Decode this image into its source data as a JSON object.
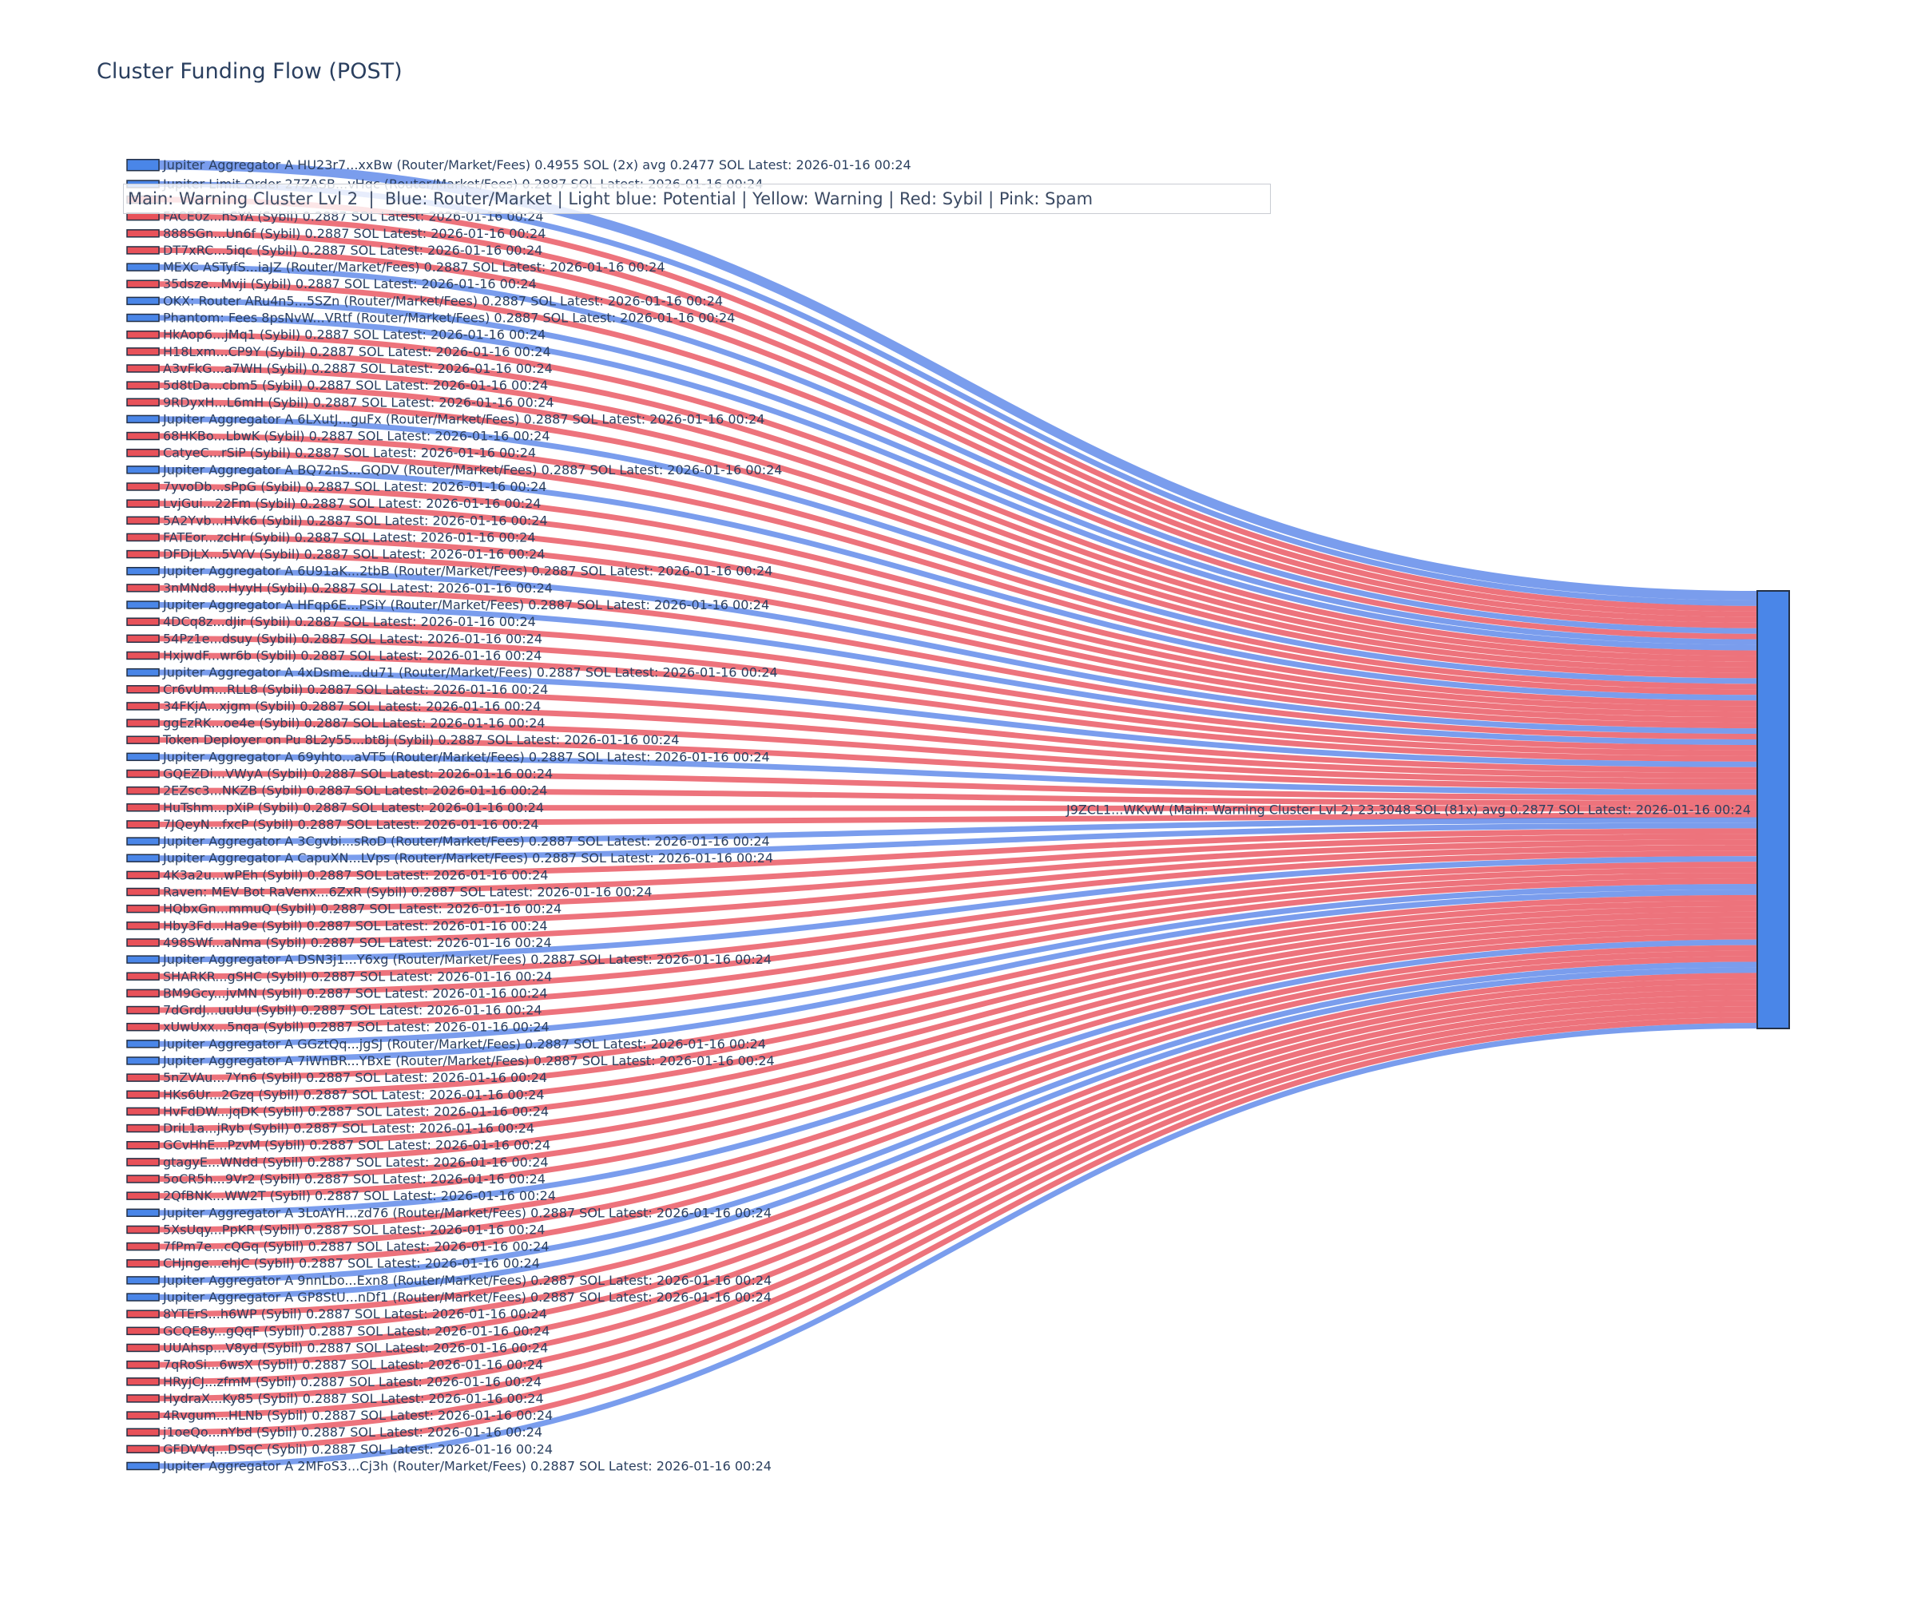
{
  "title": "Cluster Funding Flow (POST)",
  "legend": {
    "text": "Main: Warning Cluster Lvl 2  |  Blue: Router/Market | Light blue: Potential | Yellow: Warning | Red: Sybil | Pink: Spam"
  },
  "colors": {
    "router_node": "#4a86e8",
    "sybil_node": "#e8525a",
    "node_border": "#233046",
    "router_link": "rgba(65,115,230,0.70)",
    "sybil_link": "rgba(229,55,68,0.70)",
    "target_node": "#4a86e8",
    "text": "#2a3f5f",
    "background": "#ffffff"
  },
  "chart_data": {
    "type": "sankey",
    "title": "Cluster Funding Flow (POST)",
    "legend_position": "top-left",
    "target": {
      "label": "J9ZCL1...WKvW (Main: Warning Cluster Lvl 2) 23.3048 SOL (81x) avg 0.2877 SOL Latest: 2026-01-16 00:24",
      "total_sol": 23.3048,
      "tx_count": "81x",
      "avg_sol": 0.2877,
      "latest": "2026-01-16 00:24"
    },
    "sources": [
      {
        "label": "Jupiter Aggregator A HU23r7...xxBw (Router/Market/Fees) 0.4955 SOL (2x) avg 0.2477 SOL Latest: 2026-01-16 00:24",
        "category": "router",
        "value_sol": 0.4955
      },
      {
        "label": "Jupiter Limit Order 27ZASB...vHqc (Router/Market/Fees) 0.2887 SOL Latest: 2026-01-16 00:24",
        "category": "router",
        "value_sol": 0.2887
      },
      {
        "label": "",
        "category": "sybil",
        "value_sol": 0.2887,
        "hidden_behind_legend": true
      },
      {
        "label": "FACE0z...hSYA (Sybil) 0.2887 SOL Latest: 2026-01-16 00:24",
        "category": "sybil",
        "value_sol": 0.2887
      },
      {
        "label": "888SGn...Un6f (Sybil) 0.2887 SOL Latest: 2026-01-16 00:24",
        "category": "sybil",
        "value_sol": 0.2887
      },
      {
        "label": "DT7xRC...5iqc (Sybil) 0.2887 SOL Latest: 2026-01-16 00:24",
        "category": "sybil",
        "value_sol": 0.2887
      },
      {
        "label": "MEXC ASTyfS...iaJZ (Router/Market/Fees) 0.2887 SOL Latest: 2026-01-16 00:24",
        "category": "router",
        "value_sol": 0.2887
      },
      {
        "label": "35dsze...Mvji (Sybil) 0.2887 SOL Latest: 2026-01-16 00:24",
        "category": "sybil",
        "value_sol": 0.2887
      },
      {
        "label": "OKX: Router ARu4n5...5SZn (Router/Market/Fees) 0.2887 SOL Latest: 2026-01-16 00:24",
        "category": "router",
        "value_sol": 0.2887
      },
      {
        "label": "Phantom: Fees 8psNvW...VRtf (Router/Market/Fees) 0.2887 SOL Latest: 2026-01-16 00:24",
        "category": "router",
        "value_sol": 0.2887
      },
      {
        "label": "HkAop6...jMq1 (Sybil) 0.2887 SOL Latest: 2026-01-16 00:24",
        "category": "sybil",
        "value_sol": 0.2887
      },
      {
        "label": "H18Lxm...CP9Y (Sybil) 0.2887 SOL Latest: 2026-01-16 00:24",
        "category": "sybil",
        "value_sol": 0.2887
      },
      {
        "label": "A3vFkG...a7WH (Sybil) 0.2887 SOL Latest: 2026-01-16 00:24",
        "category": "sybil",
        "value_sol": 0.2887
      },
      {
        "label": "5d8tDa...cbm5 (Sybil) 0.2887 SOL Latest: 2026-01-16 00:24",
        "category": "sybil",
        "value_sol": 0.2887
      },
      {
        "label": "9RDyxH...L6mH (Sybil) 0.2887 SOL Latest: 2026-01-16 00:24",
        "category": "sybil",
        "value_sol": 0.2887
      },
      {
        "label": "Jupiter Aggregator A 6LXutJ...guFx (Router/Market/Fees) 0.2887 SOL Latest: 2026-01-16 00:24",
        "category": "router",
        "value_sol": 0.2887
      },
      {
        "label": "68HKBo...LbwK (Sybil) 0.2887 SOL Latest: 2026-01-16 00:24",
        "category": "sybil",
        "value_sol": 0.2887
      },
      {
        "label": "CatyeC...rSiP (Sybil) 0.2887 SOL Latest: 2026-01-16 00:24",
        "category": "sybil",
        "value_sol": 0.2887
      },
      {
        "label": "Jupiter Aggregator A BQ72nS...GQDV (Router/Market/Fees) 0.2887 SOL Latest: 2026-01-16 00:24",
        "category": "router",
        "value_sol": 0.2887
      },
      {
        "label": "7yvoDb...sPpG (Sybil) 0.2887 SOL Latest: 2026-01-16 00:24",
        "category": "sybil",
        "value_sol": 0.2887
      },
      {
        "label": "LvjGui...22Fm (Sybil) 0.2887 SOL Latest: 2026-01-16 00:24",
        "category": "sybil",
        "value_sol": 0.2887
      },
      {
        "label": "5A2Yvb...HVk6 (Sybil) 0.2887 SOL Latest: 2026-01-16 00:24",
        "category": "sybil",
        "value_sol": 0.2887
      },
      {
        "label": "FATEor...zcHr (Sybil) 0.2887 SOL Latest: 2026-01-16 00:24",
        "category": "sybil",
        "value_sol": 0.2887
      },
      {
        "label": "DFDjLX...5VYV (Sybil) 0.2887 SOL Latest: 2026-01-16 00:24",
        "category": "sybil",
        "value_sol": 0.2887
      },
      {
        "label": "Jupiter Aggregator A 6U91aK...2tbB (Router/Market/Fees) 0.2887 SOL Latest: 2026-01-16 00:24",
        "category": "router",
        "value_sol": 0.2887
      },
      {
        "label": "3nMNd8...HyyH (Sybil) 0.2887 SOL Latest: 2026-01-16 00:24",
        "category": "sybil",
        "value_sol": 0.2887
      },
      {
        "label": "Jupiter Aggregator A HFqp6E...PSiY (Router/Market/Fees) 0.2887 SOL Latest: 2026-01-16 00:24",
        "category": "router",
        "value_sol": 0.2887
      },
      {
        "label": "4DCq8z...dJir (Sybil) 0.2887 SOL Latest: 2026-01-16 00:24",
        "category": "sybil",
        "value_sol": 0.2887
      },
      {
        "label": "54Pz1e...dsuy (Sybil) 0.2887 SOL Latest: 2026-01-16 00:24",
        "category": "sybil",
        "value_sol": 0.2887
      },
      {
        "label": "HxjwdF...wr6b (Sybil) 0.2887 SOL Latest: 2026-01-16 00:24",
        "category": "sybil",
        "value_sol": 0.2887
      },
      {
        "label": "Jupiter Aggregator A 4xDsme...du71 (Router/Market/Fees) 0.2887 SOL Latest: 2026-01-16 00:24",
        "category": "router",
        "value_sol": 0.2887
      },
      {
        "label": "Cr6vUm...RLL8 (Sybil) 0.2887 SOL Latest: 2026-01-16 00:24",
        "category": "sybil",
        "value_sol": 0.2887
      },
      {
        "label": "34FKjA...xjgm (Sybil) 0.2887 SOL Latest: 2026-01-16 00:24",
        "category": "sybil",
        "value_sol": 0.2887
      },
      {
        "label": "ggEzRK...oe4e (Sybil) 0.2887 SOL Latest: 2026-01-16 00:24",
        "category": "sybil",
        "value_sol": 0.2887
      },
      {
        "label": "Token Deployer on Pu 8L2y55...bt8j (Sybil) 0.2887 SOL Latest: 2026-01-16 00:24",
        "category": "sybil",
        "value_sol": 0.2887
      },
      {
        "label": "Jupiter Aggregator A 69yhto...aVT5 (Router/Market/Fees) 0.2887 SOL Latest: 2026-01-16 00:24",
        "category": "router",
        "value_sol": 0.2887
      },
      {
        "label": "GQEZDi...VWyA (Sybil) 0.2887 SOL Latest: 2026-01-16 00:24",
        "category": "sybil",
        "value_sol": 0.2887
      },
      {
        "label": "2EZsc3...NKZB (Sybil) 0.2887 SOL Latest: 2026-01-16 00:24",
        "category": "sybil",
        "value_sol": 0.2887
      },
      {
        "label": "HuTshm...pXiP (Sybil) 0.2887 SOL Latest: 2026-01-16 00:24",
        "category": "sybil",
        "value_sol": 0.2887
      },
      {
        "label": "7JQeyN...fxcP (Sybil) 0.2887 SOL Latest: 2026-01-16 00:24",
        "category": "sybil",
        "value_sol": 0.2887
      },
      {
        "label": "Jupiter Aggregator A 3Cgvbi...sRoD (Router/Market/Fees) 0.2887 SOL Latest: 2026-01-16 00:24",
        "category": "router",
        "value_sol": 0.2887
      },
      {
        "label": "Jupiter Aggregator A CapuXN...LVps (Router/Market/Fees) 0.2887 SOL Latest: 2026-01-16 00:24",
        "category": "router",
        "value_sol": 0.2887
      },
      {
        "label": "4K3a2u...wPEh (Sybil) 0.2887 SOL Latest: 2026-01-16 00:24",
        "category": "sybil",
        "value_sol": 0.2887
      },
      {
        "label": "Raven: MEV Bot RaVenx...6ZxR (Sybil) 0.2887 SOL Latest: 2026-01-16 00:24",
        "category": "sybil",
        "value_sol": 0.2887
      },
      {
        "label": "HQbxGn...mmuQ (Sybil) 0.2887 SOL Latest: 2026-01-16 00:24",
        "category": "sybil",
        "value_sol": 0.2887
      },
      {
        "label": "Hby3Fd...Ha9e (Sybil) 0.2887 SOL Latest: 2026-01-16 00:24",
        "category": "sybil",
        "value_sol": 0.2887
      },
      {
        "label": "498SWf...aNma (Sybil) 0.2887 SOL Latest: 2026-01-16 00:24",
        "category": "sybil",
        "value_sol": 0.2887
      },
      {
        "label": "Jupiter Aggregator A DSN3j1...Y6xg (Router/Market/Fees) 0.2887 SOL Latest: 2026-01-16 00:24",
        "category": "router",
        "value_sol": 0.2887
      },
      {
        "label": "SHARKR...gSHC (Sybil) 0.2887 SOL Latest: 2026-01-16 00:24",
        "category": "sybil",
        "value_sol": 0.2887
      },
      {
        "label": "BM9Gcy...jvMN (Sybil) 0.2887 SOL Latest: 2026-01-16 00:24",
        "category": "sybil",
        "value_sol": 0.2887
      },
      {
        "label": "7dGrdJ...uuUu (Sybil) 0.2887 SOL Latest: 2026-01-16 00:24",
        "category": "sybil",
        "value_sol": 0.2887
      },
      {
        "label": "xUwUxx...5nqa (Sybil) 0.2887 SOL Latest: 2026-01-16 00:24",
        "category": "sybil",
        "value_sol": 0.2887
      },
      {
        "label": "Jupiter Aggregator A GGztQq...jgSJ (Router/Market/Fees) 0.2887 SOL Latest: 2026-01-16 00:24",
        "category": "router",
        "value_sol": 0.2887
      },
      {
        "label": "Jupiter Aggregator A 7iWnBR...YBxE (Router/Market/Fees) 0.2887 SOL Latest: 2026-01-16 00:24",
        "category": "router",
        "value_sol": 0.2887
      },
      {
        "label": "5nZVAu...7Yn6 (Sybil) 0.2887 SOL Latest: 2026-01-16 00:24",
        "category": "sybil",
        "value_sol": 0.2887
      },
      {
        "label": "HKs6Ur...2Gzq (Sybil) 0.2887 SOL Latest: 2026-01-16 00:24",
        "category": "sybil",
        "value_sol": 0.2887
      },
      {
        "label": "HvFdDW...jqDK (Sybil) 0.2887 SOL Latest: 2026-01-16 00:24",
        "category": "sybil",
        "value_sol": 0.2887
      },
      {
        "label": "DriL1a...jRyb (Sybil) 0.2887 SOL Latest: 2026-01-16 00:24",
        "category": "sybil",
        "value_sol": 0.2887
      },
      {
        "label": "GCvHhE...PzvM (Sybil) 0.2887 SOL Latest: 2026-01-16 00:24",
        "category": "sybil",
        "value_sol": 0.2887
      },
      {
        "label": "gtagyE...WNdd (Sybil) 0.2887 SOL Latest: 2026-01-16 00:24",
        "category": "sybil",
        "value_sol": 0.2887
      },
      {
        "label": "5oCR5h...9Vr2 (Sybil) 0.2887 SOL Latest: 2026-01-16 00:24",
        "category": "sybil",
        "value_sol": 0.2887
      },
      {
        "label": "2QfBNK...WW2T (Sybil) 0.2887 SOL Latest: 2026-01-16 00:24",
        "category": "sybil",
        "value_sol": 0.2887
      },
      {
        "label": "Jupiter Aggregator A 3LoAYH...zd76 (Router/Market/Fees) 0.2887 SOL Latest: 2026-01-16 00:24",
        "category": "router",
        "value_sol": 0.2887
      },
      {
        "label": "5XsUqy...PpKR (Sybil) 0.2887 SOL Latest: 2026-01-16 00:24",
        "category": "sybil",
        "value_sol": 0.2887
      },
      {
        "label": "7fPm7e...cQGq (Sybil) 0.2887 SOL Latest: 2026-01-16 00:24",
        "category": "sybil",
        "value_sol": 0.2887
      },
      {
        "label": "CHjnge...ehjC (Sybil) 0.2887 SOL Latest: 2026-01-16 00:24",
        "category": "sybil",
        "value_sol": 0.2887
      },
      {
        "label": "Jupiter Aggregator A 9nnLbo...Exn8 (Router/Market/Fees) 0.2887 SOL Latest: 2026-01-16 00:24",
        "category": "router",
        "value_sol": 0.2887
      },
      {
        "label": "Jupiter Aggregator A GP8StU...nDf1 (Router/Market/Fees) 0.2887 SOL Latest: 2026-01-16 00:24",
        "category": "router",
        "value_sol": 0.2887
      },
      {
        "label": "8YTErS...h6WP (Sybil) 0.2887 SOL Latest: 2026-01-16 00:24",
        "category": "sybil",
        "value_sol": 0.2887
      },
      {
        "label": "GCQE8y...gQqF (Sybil) 0.2887 SOL Latest: 2026-01-16 00:24",
        "category": "sybil",
        "value_sol": 0.2887
      },
      {
        "label": "UUAhsp...V8yd (Sybil) 0.2887 SOL Latest: 2026-01-16 00:24",
        "category": "sybil",
        "value_sol": 0.2887
      },
      {
        "label": "7qRoSi...6wsX (Sybil) 0.2887 SOL Latest: 2026-01-16 00:24",
        "category": "sybil",
        "value_sol": 0.2887
      },
      {
        "label": "HRyjCJ...zfmM (Sybil) 0.2887 SOL Latest: 2026-01-16 00:24",
        "category": "sybil",
        "value_sol": 0.2887
      },
      {
        "label": "HydraX...Ky85 (Sybil) 0.2887 SOL Latest: 2026-01-16 00:24",
        "category": "sybil",
        "value_sol": 0.2887
      },
      {
        "label": "4Rvgum...HLNb (Sybil) 0.2887 SOL Latest: 2026-01-16 00:24",
        "category": "sybil",
        "value_sol": 0.2887
      },
      {
        "label": "j1oeQo...nYbd (Sybil) 0.2887 SOL Latest: 2026-01-16 00:24",
        "category": "sybil",
        "value_sol": 0.2887
      },
      {
        "label": "GFDVVq...DSqC (Sybil) 0.2887 SOL Latest: 2026-01-16 00:24",
        "category": "sybil",
        "value_sol": 0.2887
      },
      {
        "label": "Jupiter Aggregator A 2MFoS3...Cj3h (Router/Market/Fees) 0.2887 SOL Latest: 2026-01-16 00:24",
        "category": "router",
        "value_sol": 0.2887
      }
    ]
  }
}
